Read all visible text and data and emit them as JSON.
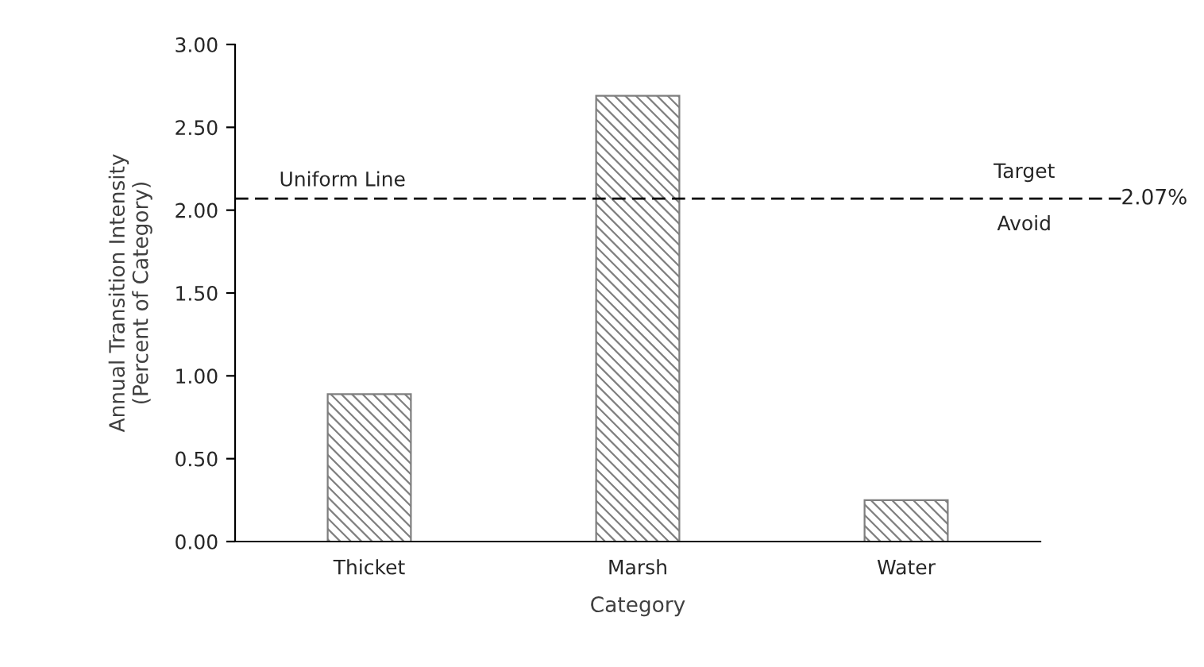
{
  "chart_data": {
    "type": "bar",
    "xlabel": "Category",
    "ylabel": "Annual Transition Intensity\n(Percent of Category)",
    "categories": [
      "Thicket",
      "Marsh",
      "Water"
    ],
    "series": [
      {
        "color": "#7f7f7f",
        "values": [
          0.89,
          2.69,
          0.25
        ]
      }
    ],
    "ylim": [
      0,
      3
    ],
    "yticks": [
      {
        "value": 0,
        "label": "0.00"
      },
      {
        "value": 0.5,
        "label": "0.50"
      },
      {
        "value": 1,
        "label": "1.00"
      },
      {
        "value": 1.5,
        "label": "1.50"
      },
      {
        "value": 2,
        "label": "2.00"
      },
      {
        "value": 2.5,
        "label": "2.50"
      },
      {
        "value": 3,
        "label": "3.00"
      }
    ],
    "ref_lines": [
      {
        "axis": "y",
        "value": 2.07,
        "label": "2.07%",
        "color": "#000000",
        "line_style": "dashed"
      }
    ],
    "annotations": [
      "Uniform Line",
      "Target",
      "Avoid"
    ],
    "grid": false,
    "legend": false
  }
}
